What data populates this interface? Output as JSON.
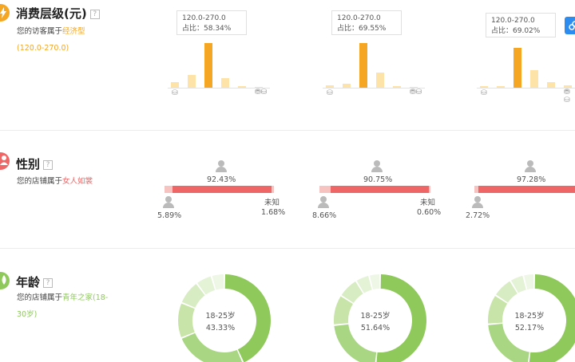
{
  "colors": {
    "orange": "#f5a623",
    "light_orange": "#fde3a7",
    "red": "#ef6666",
    "light_red": "#f6c3c0",
    "green": "#8fc95c",
    "light_green": "#c8e4a8",
    "icon_blue": "#2d8cf0"
  },
  "consumption": {
    "title": "消费层级(元)",
    "help": "?",
    "desc_prefix": "您的访客属于",
    "desc_highlight": "经济型",
    "desc_range": "(120.0-270.0)",
    "panels": [
      {
        "tip_range": "120.0-270.0",
        "tip_ratio": "占比：58.34%",
        "bars": [
          0.13,
          0.28,
          1.0,
          0.22,
          0.03,
          0.02
        ]
      },
      {
        "tip_range": "120.0-270.0",
        "tip_ratio": "占比：69.55%",
        "bars": [
          0.06,
          0.09,
          1.0,
          0.34,
          0.03,
          0.02
        ]
      },
      {
        "tip_range": "120.0-270.0",
        "tip_ratio": "占比：69.02%",
        "bars": [
          0.03,
          0.03,
          1.0,
          0.43,
          0.13,
          0.05
        ]
      }
    ]
  },
  "gender": {
    "title": "性别",
    "help": "?",
    "desc_prefix": "您的店铺属于",
    "desc_highlight": "女人如裳",
    "panels": [
      {
        "female": "92.43%",
        "male": "5.89%",
        "unknown_label": "未知",
        "unknown": "1.68%"
      },
      {
        "female": "90.75%",
        "male": "8.66%",
        "unknown_label": "未知",
        "unknown": "0.60%"
      },
      {
        "female": "97.28%",
        "male": "2.72%"
      }
    ]
  },
  "age": {
    "title": "年龄",
    "help": "?",
    "desc_prefix": "您的店铺属于",
    "desc_highlight": "青年之家(18-30岁)",
    "panels": [
      {
        "label": "18-25岁",
        "value": "43.33%",
        "fraction": 0.4333
      },
      {
        "label": "18-25岁",
        "value": "51.64%",
        "fraction": 0.5164
      },
      {
        "label": "18-25岁",
        "value": "52.17%",
        "fraction": 0.5217
      }
    ]
  }
}
